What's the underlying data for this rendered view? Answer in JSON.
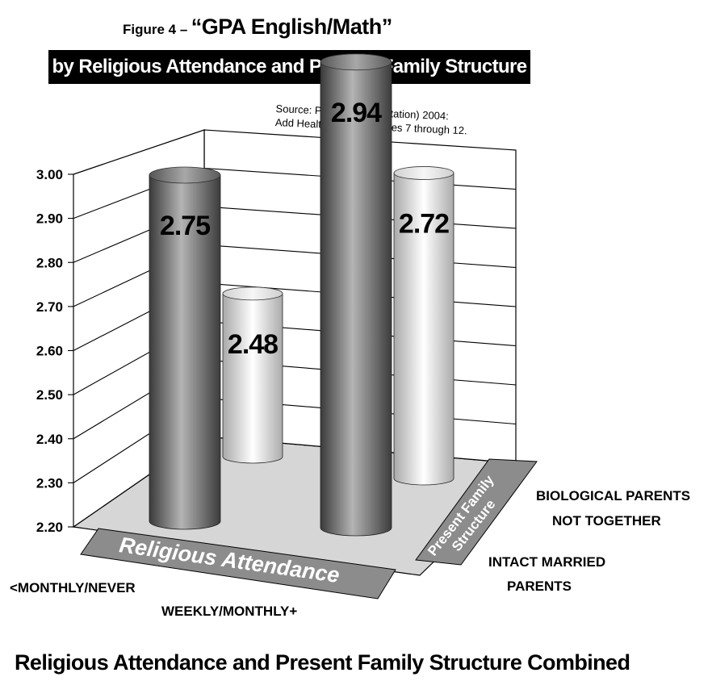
{
  "title": {
    "prefix": "Figure 4 –",
    "main": "“GPA English/Math”",
    "subtitle": "by Religious Attendance and Present Family Structure"
  },
  "source": {
    "line1": "Source: P Fagan (Dissertation) 2004:",
    "line2": "Add Health Wave 1 Grades 7 through 12."
  },
  "bottom_title": "Religious Attendance and Present Family Structure Combined",
  "chart_data": {
    "type": "bar",
    "title": "“GPA English/Math”",
    "subtitle": "by Religious Attendance and Present Family Structure",
    "xlabel": "Religious Attendance",
    "zlabel_line1": "Present Family",
    "zlabel_line2": "Structure",
    "categories": [
      "<MONTHLY/NEVER",
      "WEEKLY/MONTHLY+"
    ],
    "series": [
      {
        "name_line1": "INTACT MARRIED",
        "name_line2": "PARENTS",
        "values": [
          2.75,
          2.94
        ],
        "color": "#6e6e6e"
      },
      {
        "name_line1": "BIOLOGICAL PARENTS",
        "name_line2": "NOT TOGETHER",
        "values": [
          2.48,
          2.72
        ],
        "color": "#e2e2e2"
      }
    ],
    "ylim": [
      2.2,
      3.0
    ],
    "yticks": [
      "2.20",
      "2.30",
      "2.40",
      "2.50",
      "2.60",
      "2.70",
      "2.80",
      "2.90",
      "3.00"
    ],
    "value_labels": [
      "2.75",
      "2.94",
      "2.48",
      "2.72"
    ]
  }
}
